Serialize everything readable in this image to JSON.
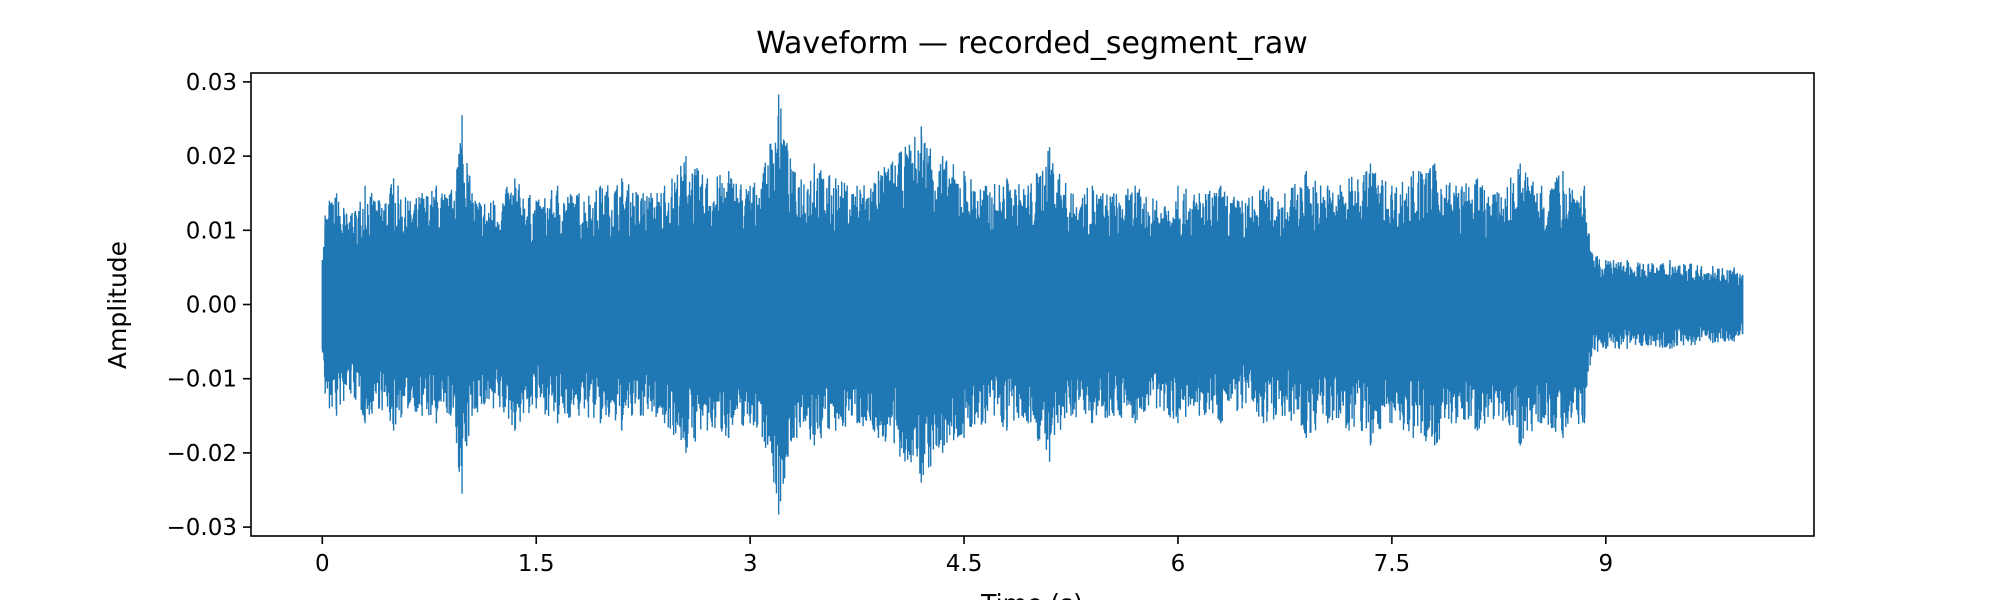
{
  "chart_data": {
    "type": "line",
    "title": "Waveform — recorded_segment_raw",
    "xlabel": "Time (s)",
    "ylabel": "Amplitude",
    "xlim": [
      -0.5,
      10.46
    ],
    "ylim": [
      -0.0312,
      0.0312
    ],
    "xticks": [
      {
        "value": 0,
        "label": "0"
      },
      {
        "value": 1.5,
        "label": "1.5"
      },
      {
        "value": 3,
        "label": "3"
      },
      {
        "value": 4.5,
        "label": "4.5"
      },
      {
        "value": 6,
        "label": "6"
      },
      {
        "value": 7.5,
        "label": "7.5"
      },
      {
        "value": 9,
        "label": "9"
      }
    ],
    "yticks": [
      {
        "value": 0.03,
        "label": "0.03"
      },
      {
        "value": 0.02,
        "label": "0.02"
      },
      {
        "value": 0.01,
        "label": "0.01"
      },
      {
        "value": 0.0,
        "label": "0.00"
      },
      {
        "value": -0.01,
        "label": "−0.01"
      },
      {
        "value": -0.02,
        "label": "−0.02"
      },
      {
        "value": -0.03,
        "label": "−0.03"
      }
    ],
    "grid": false,
    "legend": "none",
    "line_color": "#1f77b4",
    "series": [
      {
        "x": [
          0.0,
          0.02,
          0.05,
          0.1,
          0.15,
          0.2,
          0.3,
          0.4,
          0.5,
          0.6,
          0.7,
          0.8,
          0.9,
          0.98,
          1.05,
          1.2,
          1.35,
          1.5,
          1.65,
          1.8,
          1.95,
          2.1,
          2.25,
          2.4,
          2.55,
          2.7,
          2.85,
          3.0,
          3.1,
          3.2,
          3.3,
          3.45,
          3.6,
          3.75,
          3.9,
          4.05,
          4.2,
          4.35,
          4.5,
          4.65,
          4.8,
          4.95,
          5.1,
          5.25,
          5.4,
          5.55,
          5.7,
          5.85,
          6.0,
          6.15,
          6.3,
          6.45,
          6.6,
          6.75,
          6.9,
          7.05,
          7.2,
          7.35,
          7.5,
          7.65,
          7.8,
          7.95,
          8.1,
          8.25,
          8.4,
          8.55,
          8.7,
          8.85,
          8.9,
          9.0,
          9.15,
          9.3,
          9.45,
          9.6,
          9.75,
          9.9,
          9.96
        ],
        "y_max": [
          0.006,
          0.012,
          0.014,
          0.015,
          0.013,
          0.012,
          0.016,
          0.014,
          0.017,
          0.014,
          0.015,
          0.016,
          0.015,
          0.0255,
          0.015,
          0.014,
          0.017,
          0.014,
          0.016,
          0.015,
          0.016,
          0.017,
          0.015,
          0.016,
          0.02,
          0.017,
          0.018,
          0.016,
          0.0185,
          0.0283,
          0.018,
          0.019,
          0.017,
          0.016,
          0.018,
          0.0205,
          0.024,
          0.02,
          0.018,
          0.016,
          0.017,
          0.016,
          0.0212,
          0.015,
          0.016,
          0.015,
          0.016,
          0.014,
          0.016,
          0.015,
          0.016,
          0.014,
          0.016,
          0.015,
          0.018,
          0.016,
          0.017,
          0.019,
          0.016,
          0.018,
          0.019,
          0.016,
          0.017,
          0.015,
          0.019,
          0.016,
          0.018,
          0.016,
          0.007,
          0.006,
          0.006,
          0.0055,
          0.006,
          0.0055,
          0.0052,
          0.005,
          0.004
        ],
        "y_min": [
          -0.006,
          -0.012,
          -0.014,
          -0.015,
          -0.013,
          -0.012,
          -0.016,
          -0.014,
          -0.017,
          -0.014,
          -0.015,
          -0.016,
          -0.015,
          -0.0255,
          -0.015,
          -0.014,
          -0.017,
          -0.014,
          -0.016,
          -0.015,
          -0.016,
          -0.017,
          -0.015,
          -0.016,
          -0.02,
          -0.017,
          -0.018,
          -0.016,
          -0.0185,
          -0.0283,
          -0.018,
          -0.019,
          -0.017,
          -0.016,
          -0.018,
          -0.0205,
          -0.024,
          -0.02,
          -0.018,
          -0.016,
          -0.017,
          -0.016,
          -0.0212,
          -0.015,
          -0.016,
          -0.015,
          -0.016,
          -0.014,
          -0.016,
          -0.015,
          -0.016,
          -0.014,
          -0.016,
          -0.015,
          -0.018,
          -0.016,
          -0.017,
          -0.019,
          -0.016,
          -0.018,
          -0.019,
          -0.016,
          -0.017,
          -0.015,
          -0.019,
          -0.016,
          -0.018,
          -0.016,
          -0.007,
          -0.006,
          -0.006,
          -0.0055,
          -0.006,
          -0.0055,
          -0.0052,
          -0.005,
          -0.004
        ]
      }
    ]
  }
}
